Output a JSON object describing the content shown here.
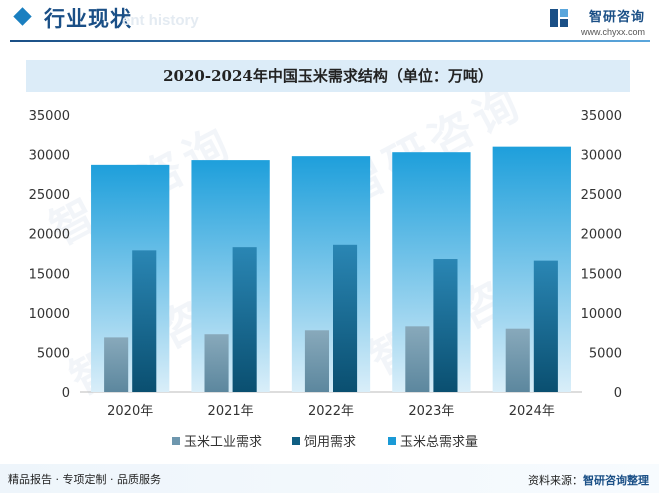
{
  "header": {
    "title": "行业现状",
    "subtitle": "ent history",
    "brand_name": "智研咨询",
    "brand_site": "www.chyxx.com"
  },
  "footer": {
    "left_text": "精品报告 · 专项定制 · 品质服务",
    "source_label": "资料来源：",
    "source_name": "智研咨询整理"
  },
  "watermark": {
    "text": "智研咨询"
  },
  "colors": {
    "industrial": "#6e97ae",
    "feed": "#0f5e82",
    "total": "#1a9ad6"
  },
  "chart_data": {
    "type": "bar",
    "title": "2020-2024年中国玉米需求结构（单位：万吨）",
    "categories": [
      "2020年",
      "2021年",
      "2022年",
      "2023年",
      "2024年"
    ],
    "series": [
      {
        "name": "玉米工业需求",
        "values": [
          6900,
          7300,
          7800,
          8300,
          8000
        ]
      },
      {
        "name": "饲用需求",
        "values": [
          17900,
          18300,
          18600,
          16800,
          16600
        ]
      },
      {
        "name": "玉米总需求量",
        "values": [
          28700,
          29300,
          29800,
          30300,
          31000
        ]
      }
    ],
    "ylim": [
      0,
      35000
    ],
    "yticks": [
      0,
      5000,
      10000,
      15000,
      20000,
      25000,
      30000,
      35000
    ],
    "y_axis_left": true,
    "y_axis_right": true,
    "grid": false,
    "legend_position": "bottom"
  }
}
